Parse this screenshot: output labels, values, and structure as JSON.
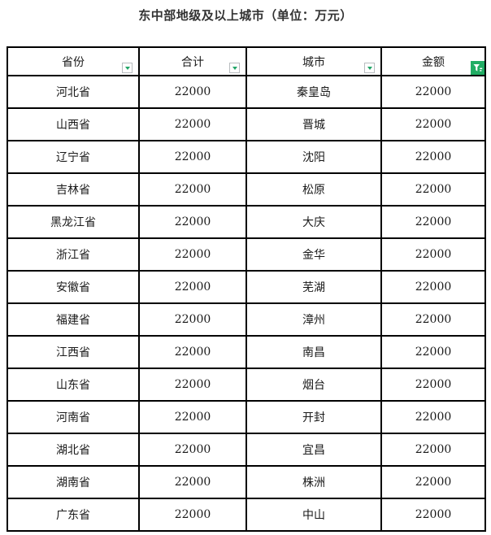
{
  "title": "东中部地级及以上城市（单位：万元）",
  "table": {
    "columns": [
      {
        "label": "省份",
        "filter": "dropdown"
      },
      {
        "label": "合计",
        "filter": "dropdown"
      },
      {
        "label": "城市",
        "filter": "dropdown"
      },
      {
        "label": "金额",
        "filter": "active"
      }
    ],
    "rows": [
      {
        "province": "河北省",
        "total": "22000",
        "city": "秦皇岛",
        "amount": "22000"
      },
      {
        "province": "山西省",
        "total": "22000",
        "city": "晋城",
        "amount": "22000"
      },
      {
        "province": "辽宁省",
        "total": "22000",
        "city": "沈阳",
        "amount": "22000"
      },
      {
        "province": "吉林省",
        "total": "22000",
        "city": "松原",
        "amount": "22000"
      },
      {
        "province": "黑龙江省",
        "total": "22000",
        "city": "大庆",
        "amount": "22000"
      },
      {
        "province": "浙江省",
        "total": "22000",
        "city": "金华",
        "amount": "22000"
      },
      {
        "province": "安徽省",
        "total": "22000",
        "city": "芜湖",
        "amount": "22000"
      },
      {
        "province": "福建省",
        "total": "22000",
        "city": "漳州",
        "amount": "22000"
      },
      {
        "province": "江西省",
        "total": "22000",
        "city": "南昌",
        "amount": "22000"
      },
      {
        "province": "山东省",
        "total": "22000",
        "city": "烟台",
        "amount": "22000"
      },
      {
        "province": "河南省",
        "total": "22000",
        "city": "开封",
        "amount": "22000"
      },
      {
        "province": "湖北省",
        "total": "22000",
        "city": "宜昌",
        "amount": "22000"
      },
      {
        "province": "湖南省",
        "total": "22000",
        "city": "株洲",
        "amount": "22000"
      },
      {
        "province": "广东省",
        "total": "22000",
        "city": "中山",
        "amount": "22000"
      }
    ]
  },
  "icons": {
    "filter_dropdown": "filter-dropdown-triangle",
    "filter_active": "filter-active-funnel"
  },
  "colors": {
    "border": "#000000",
    "title_text": "#333333",
    "cell_text": "#1a1a1a",
    "filter_triangle_green": "#21a567",
    "filter_active_green": "#21ad64",
    "filter_button_border": "#b8bcbf"
  }
}
